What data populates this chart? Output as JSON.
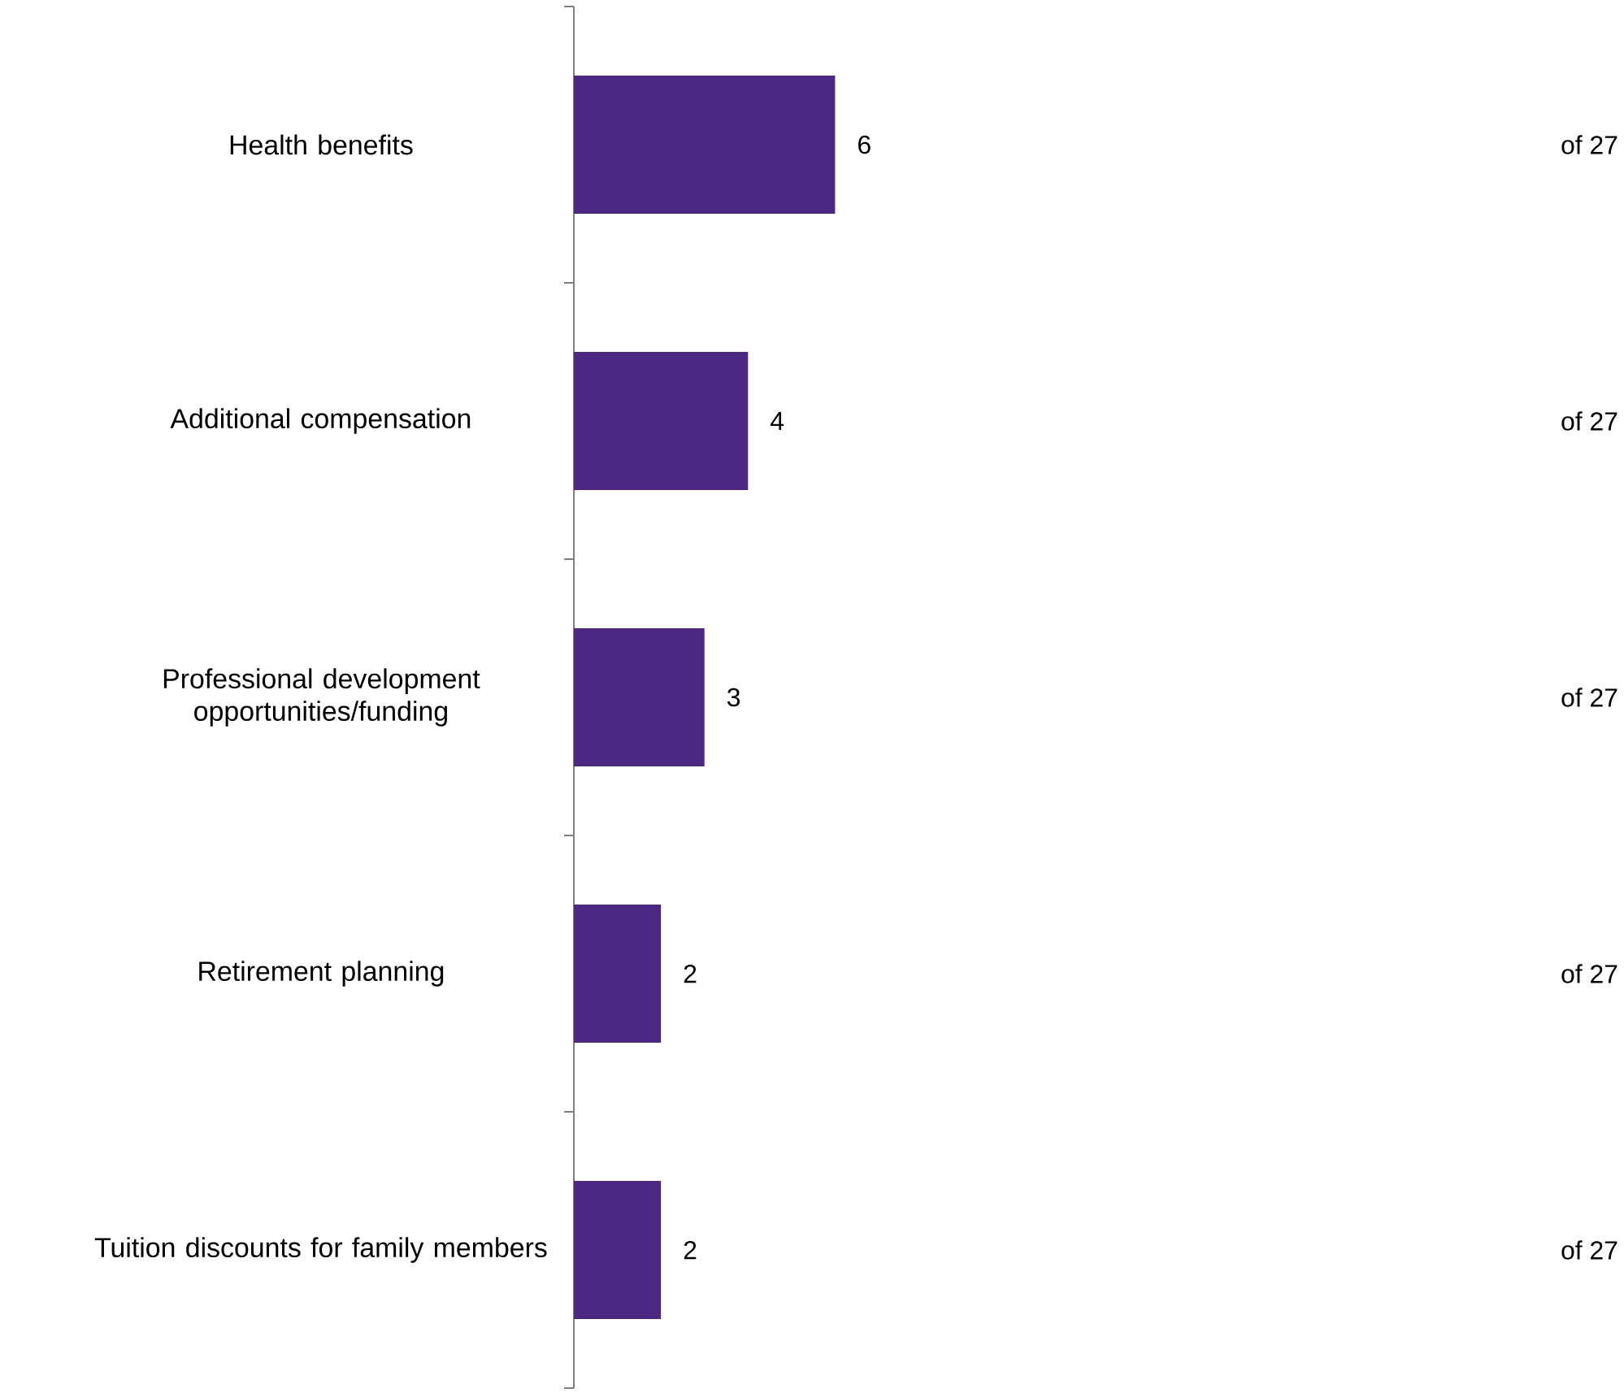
{
  "chart_data": {
    "type": "bar",
    "orientation": "horizontal",
    "categories": [
      "Health benefits",
      "Additional compensation",
      "Professional development opportunities/funding",
      "Retirement planning",
      "Tuition discounts for family members"
    ],
    "values": [
      6,
      4,
      3,
      2,
      2
    ],
    "color": "#4b2882",
    "data_labels": true,
    "annotations": [
      "of 27",
      "of 27",
      "of 27",
      "of 27",
      "of 27"
    ]
  }
}
